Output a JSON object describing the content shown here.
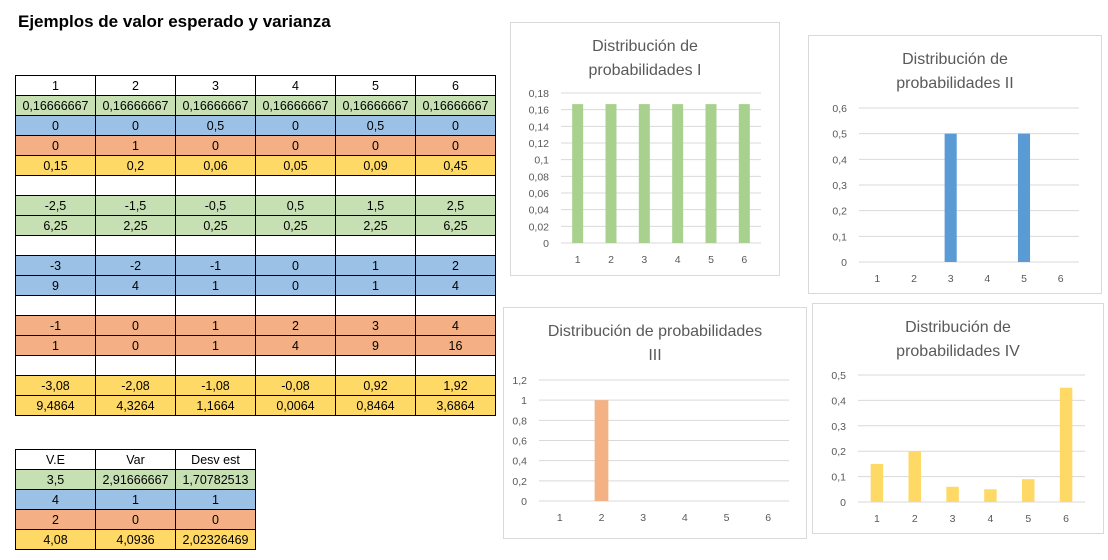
{
  "title": "Ejemplos de valor esperado y varianza",
  "colors": {
    "green": "#c6e0b4",
    "blue": "#9bc2e6",
    "orange": "#f4b084",
    "yellow": "#ffd966",
    "bar_green": "#a9d18e",
    "bar_blue": "#5b9bd5",
    "bar_orange": "#f4b183",
    "bar_yellow": "#ffd966"
  },
  "main_table": {
    "rows": [
      {
        "color": "white",
        "cells": [
          "1",
          "2",
          "3",
          "4",
          "5",
          "6"
        ]
      },
      {
        "color": "green",
        "cells": [
          "0,16666667",
          "0,16666667",
          "0,16666667",
          "0,16666667",
          "0,16666667",
          "0,16666667"
        ]
      },
      {
        "color": "blue",
        "cells": [
          "0",
          "0",
          "0,5",
          "0",
          "0,5",
          "0"
        ]
      },
      {
        "color": "orange",
        "cells": [
          "0",
          "1",
          "0",
          "0",
          "0",
          "0"
        ]
      },
      {
        "color": "yellow",
        "cells": [
          "0,15",
          "0,2",
          "0,06",
          "0,05",
          "0,09",
          "0,45"
        ]
      },
      {
        "color": "white",
        "cells": [
          "",
          "",
          "",
          "",
          "",
          ""
        ]
      },
      {
        "color": "green",
        "cells": [
          "-2,5",
          "-1,5",
          "-0,5",
          "0,5",
          "1,5",
          "2,5"
        ]
      },
      {
        "color": "green",
        "cells": [
          "6,25",
          "2,25",
          "0,25",
          "0,25",
          "2,25",
          "6,25"
        ]
      },
      {
        "color": "white",
        "cells": [
          "",
          "",
          "",
          "",
          "",
          ""
        ]
      },
      {
        "color": "blue",
        "cells": [
          "-3",
          "-2",
          "-1",
          "0",
          "1",
          "2"
        ]
      },
      {
        "color": "blue",
        "cells": [
          "9",
          "4",
          "1",
          "0",
          "1",
          "4"
        ]
      },
      {
        "color": "white",
        "cells": [
          "",
          "",
          "",
          "",
          "",
          ""
        ]
      },
      {
        "color": "orange",
        "cells": [
          "-1",
          "0",
          "1",
          "2",
          "3",
          "4"
        ]
      },
      {
        "color": "orange",
        "cells": [
          "1",
          "0",
          "1",
          "4",
          "9",
          "16"
        ]
      },
      {
        "color": "white",
        "cells": [
          "",
          "",
          "",
          "",
          "",
          ""
        ]
      },
      {
        "color": "yellow",
        "cells": [
          "-3,08",
          "-2,08",
          "-1,08",
          "-0,08",
          "0,92",
          "1,92"
        ]
      },
      {
        "color": "yellow",
        "cells": [
          "9,4864",
          "4,3264",
          "1,1664",
          "0,0064",
          "0,8464",
          "3,6864"
        ]
      }
    ]
  },
  "summary_table": {
    "rows": [
      {
        "color": "white",
        "cells": [
          "V.E",
          "Var",
          "Desv est"
        ]
      },
      {
        "color": "green",
        "cells": [
          "3,5",
          "2,91666667",
          "1,70782513"
        ]
      },
      {
        "color": "blue",
        "cells": [
          "4",
          "1",
          "1"
        ]
      },
      {
        "color": "orange",
        "cells": [
          "2",
          "0",
          "0"
        ]
      },
      {
        "color": "yellow",
        "cells": [
          "4,08",
          "4,0936",
          "2,02326469"
        ]
      }
    ]
  },
  "chart_data": [
    {
      "type": "bar",
      "title": "Distribución de probabilidades I",
      "categories": [
        "1",
        "2",
        "3",
        "4",
        "5",
        "6"
      ],
      "values": [
        0.16666667,
        0.16666667,
        0.16666667,
        0.16666667,
        0.16666667,
        0.16666667
      ],
      "ylim": [
        0,
        0.18
      ],
      "yticks": [
        "0",
        "0,02",
        "0,04",
        "0,06",
        "0,08",
        "0,1",
        "0,12",
        "0,14",
        "0,16",
        "0,18"
      ],
      "color": "#a9d18e",
      "grid": true
    },
    {
      "type": "bar",
      "title": "Distribución de probabilidades II",
      "categories": [
        "1",
        "2",
        "3",
        "4",
        "5",
        "6"
      ],
      "values": [
        0,
        0,
        0.5,
        0,
        0.5,
        0
      ],
      "ylim": [
        0,
        0.6
      ],
      "yticks": [
        "0",
        "0,1",
        "0,2",
        "0,3",
        "0,4",
        "0,5",
        "0,6"
      ],
      "color": "#5b9bd5",
      "grid": true
    },
    {
      "type": "bar",
      "title": "Distribución de probabilidades III",
      "categories": [
        "1",
        "2",
        "3",
        "4",
        "5",
        "6"
      ],
      "values": [
        0,
        1,
        0,
        0,
        0,
        0
      ],
      "ylim": [
        0,
        1.2
      ],
      "yticks": [
        "0",
        "0,2",
        "0,4",
        "0,6",
        "0,8",
        "1",
        "1,2"
      ],
      "color": "#f4b183",
      "grid": true
    },
    {
      "type": "bar",
      "title": "Distribución de probabilidades IV",
      "categories": [
        "1",
        "2",
        "3",
        "4",
        "5",
        "6"
      ],
      "values": [
        0.15,
        0.2,
        0.06,
        0.05,
        0.09,
        0.45
      ],
      "ylim": [
        0,
        0.5
      ],
      "yticks": [
        "0",
        "0,1",
        "0,2",
        "0,3",
        "0,4",
        "0,5"
      ],
      "color": "#ffd966",
      "grid": true
    }
  ]
}
